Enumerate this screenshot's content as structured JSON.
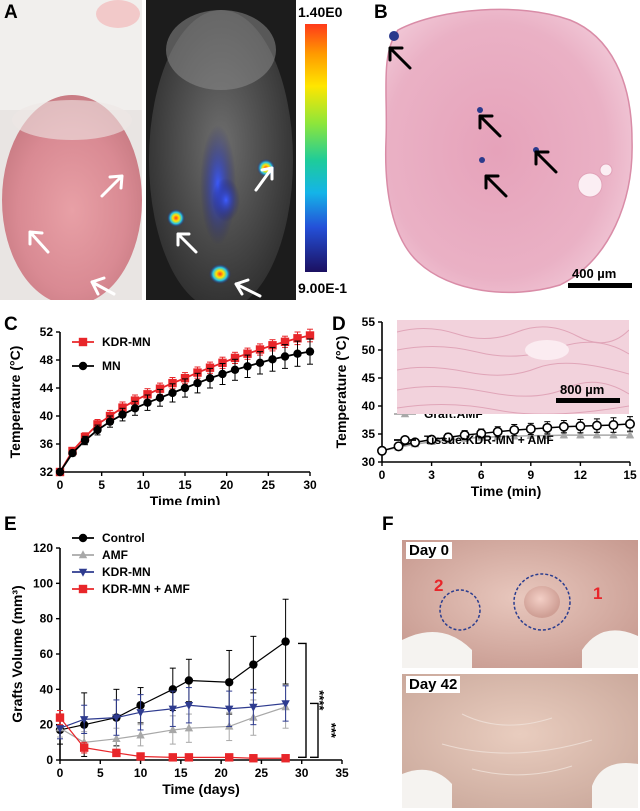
{
  "panels": {
    "A": "A",
    "B": "B",
    "C": "C",
    "D": "D",
    "E": "E",
    "F": "F"
  },
  "panel_A": {
    "colorbar_max": "1.40E0",
    "colorbar_min": "9.00E-1"
  },
  "panel_B": {
    "scale_bar": "400 µm"
  },
  "panel_D_inset": {
    "scale_bar": "800 µm"
  },
  "panel_F": {
    "top_label": "Day 0",
    "bottom_label": "Day 42",
    "circle_1": "1",
    "circle_2": "2"
  },
  "colors": {
    "red": "#e8262a",
    "black": "#000000",
    "gray": "#a8a8a8",
    "blue": "#2e3b8f"
  },
  "chart_data": [
    {
      "id": "C",
      "type": "line",
      "xlabel": "Time (min)",
      "ylabel": "Temperature (°C)",
      "xlim": [
        0,
        30
      ],
      "ylim": [
        32,
        52
      ],
      "xticks": [
        0,
        5,
        10,
        15,
        20,
        25,
        30
      ],
      "yticks": [
        32,
        36,
        40,
        44,
        48,
        52
      ],
      "legend_position": "top-left",
      "x": [
        0,
        1.5,
        3,
        4.5,
        6,
        7.5,
        9,
        10.5,
        12,
        13.5,
        15,
        16.5,
        18,
        19.5,
        21,
        22.5,
        24,
        25.5,
        27,
        28.5,
        30
      ],
      "series": [
        {
          "name": "KDR-MN",
          "color": "#e8262a",
          "marker": "square",
          "values": [
            32,
            35.0,
            37.0,
            38.8,
            40.0,
            41.2,
            42.2,
            43.1,
            43.9,
            44.7,
            45.4,
            46.2,
            46.9,
            47.6,
            48.3,
            48.9,
            49.5,
            50.1,
            50.6,
            51.1,
            51.5
          ],
          "errors": [
            0,
            0.4,
            0.6,
            0.7,
            0.8,
            0.8,
            0.8,
            0.8,
            0.8,
            0.8,
            0.8,
            0.8,
            0.8,
            0.8,
            0.8,
            0.8,
            0.8,
            0.8,
            0.8,
            0.9,
            0.9
          ]
        },
        {
          "name": "MN",
          "color": "#000000",
          "marker": "circle",
          "values": [
            32,
            34.7,
            36.5,
            38.0,
            39.2,
            40.2,
            41.1,
            41.9,
            42.6,
            43.3,
            44.0,
            44.7,
            45.4,
            46.0,
            46.6,
            47.1,
            47.6,
            48.1,
            48.5,
            48.9,
            49.2
          ],
          "errors": [
            0,
            0.4,
            0.6,
            0.7,
            0.8,
            0.9,
            1.0,
            1.1,
            1.2,
            1.3,
            1.3,
            1.4,
            1.4,
            1.5,
            1.5,
            1.6,
            1.6,
            1.7,
            1.7,
            1.8,
            1.8
          ]
        }
      ]
    },
    {
      "id": "D",
      "type": "line",
      "xlabel": "Time (min)",
      "ylabel": "Temperature (°C)",
      "xlim": [
        0,
        15
      ],
      "ylim": [
        30,
        55
      ],
      "xticks": [
        0,
        3,
        6,
        9,
        12,
        15
      ],
      "yticks": [
        30,
        35,
        40,
        45,
        50,
        55
      ],
      "legend_position": "middle-left",
      "x": [
        0,
        1,
        2,
        3,
        4,
        5,
        6,
        7,
        8,
        9,
        10,
        11,
        12,
        13,
        14,
        15
      ],
      "series": [
        {
          "name": "Graft:AMF",
          "color": "#a8a8a8",
          "marker": "triangle",
          "values": [
            32,
            32.6,
            33.2,
            33.6,
            33.9,
            34.2,
            34.4,
            34.5,
            34.6,
            34.7,
            34.7,
            34.8,
            34.8,
            34.8,
            34.8,
            34.8
          ],
          "errors": [
            0,
            0.3,
            0.4,
            0.4,
            0.5,
            0.5,
            0.5,
            0.5,
            0.5,
            0.5,
            0.5,
            0.5,
            0.5,
            0.5,
            0.5,
            0.5
          ]
        },
        {
          "name": "Tissue:KDR-MN + AMF",
          "color": "#000000",
          "marker": "open-circle",
          "values": [
            32,
            32.8,
            33.5,
            34.0,
            34.4,
            34.8,
            35.1,
            35.4,
            35.7,
            35.9,
            36.1,
            36.3,
            36.4,
            36.5,
            36.6,
            36.8
          ],
          "errors": [
            0,
            0.4,
            0.5,
            0.6,
            0.7,
            0.8,
            0.8,
            0.9,
            1.0,
            1.0,
            1.1,
            1.1,
            1.2,
            1.2,
            1.3,
            1.3
          ]
        }
      ]
    },
    {
      "id": "E",
      "type": "line",
      "xlabel": "Time (days)",
      "ylabel": "Grafts Volume (mm³)",
      "xlim": [
        0,
        35
      ],
      "ylim": [
        0,
        120
      ],
      "xticks": [
        0,
        5,
        10,
        15,
        20,
        25,
        30,
        35
      ],
      "yticks": [
        0,
        20,
        40,
        60,
        80,
        100,
        120
      ],
      "legend_position": "top-left",
      "significance": [
        "****",
        "***"
      ],
      "series": [
        {
          "name": "Control",
          "color": "#000000",
          "marker": "circle",
          "x": [
            0,
            3,
            7,
            10,
            14,
            16,
            21,
            24,
            28
          ],
          "values": [
            17,
            20,
            24,
            31,
            40,
            45,
            44,
            54,
            67
          ],
          "errors": [
            8,
            18,
            16,
            10,
            12,
            12,
            18,
            16,
            24
          ]
        },
        {
          "name": "AMF",
          "color": "#a8a8a8",
          "marker": "triangle",
          "x": [
            0,
            3,
            7,
            10,
            14,
            16,
            21,
            24,
            28
          ],
          "values": [
            18,
            10,
            12,
            14,
            17,
            18,
            19,
            24,
            30
          ],
          "errors": [
            5,
            6,
            6,
            6,
            8,
            8,
            8,
            10,
            12
          ]
        },
        {
          "name": "KDR-MN",
          "color": "#2e3b8f",
          "marker": "triangle-down",
          "x": [
            0,
            3,
            7,
            10,
            14,
            16,
            21,
            24,
            28
          ],
          "values": [
            18,
            23,
            24,
            27,
            29,
            31,
            29,
            30,
            32
          ],
          "errors": [
            6,
            8,
            10,
            10,
            10,
            10,
            10,
            10,
            10
          ]
        },
        {
          "name": "KDR-MN + AMF",
          "color": "#e8262a",
          "marker": "square",
          "x": [
            0,
            3,
            7,
            10,
            14,
            16,
            21,
            24,
            28
          ],
          "values": [
            24,
            7,
            4,
            2,
            1.5,
            1.5,
            1.5,
            1,
            1
          ],
          "errors": [
            4,
            3,
            2,
            1,
            1,
            1,
            1,
            1,
            1
          ]
        }
      ]
    }
  ]
}
